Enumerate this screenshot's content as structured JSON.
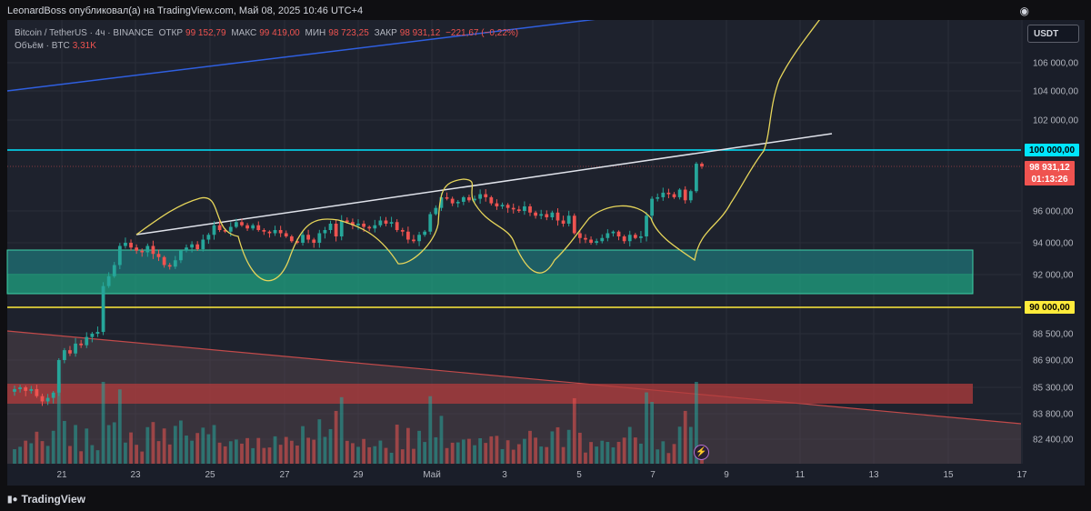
{
  "header": {
    "published": "LeonardBoss опубликовал(а) на TradingView.com, Май 08, 2025 10:46 UTC+4",
    "snapshot_icon": "camera-icon"
  },
  "legend": {
    "symbol": "Bitcoin / TetherUS · 4ч · BINANCE",
    "open_label": "ОТКР",
    "open_value": "99 152,79",
    "high_label": "МАКС",
    "high_value": "99 419,00",
    "low_label": "МИН",
    "low_value": "98 723,25",
    "close_label": "ЗАКР",
    "close_value": "98 931,12",
    "change": "−221,67 (−0,22%)",
    "volume_label": "Объём · BTC",
    "volume_value": "3,31K"
  },
  "currency": "USDT",
  "price_tags": {
    "level_100k": "100 000,00",
    "last_price": "98 931,12",
    "countdown": "01:13:26",
    "level_90k": "90 000,00"
  },
  "footer": {
    "brand": "TradingView"
  },
  "colors": {
    "up": "#26a69a",
    "down": "#ef5350",
    "cyan_level": "#00e5ff",
    "yellow_level": "#ffeb3b",
    "blue_trend": "#2962ff",
    "sketch": "#e6d55a",
    "demand_zone": "#1b9e85",
    "supply_zone": "#d84a4a"
  },
  "chart_data": {
    "type": "candlestick",
    "symbol": "BTCUSDT",
    "timeframe": "4h",
    "y_ticks": [
      "106 000,00",
      "104 000,00",
      "102 000,00",
      "96 000,00",
      "94 000,00",
      "92 000,00",
      "88 500,00",
      "86 900,00",
      "85 300,00",
      "83 800,00",
      "82 400,00"
    ],
    "x_ticks": [
      "21",
      "23",
      "25",
      "27",
      "29",
      "Май",
      "3",
      "5",
      "7",
      "9",
      "11",
      "13",
      "15",
      "17"
    ],
    "closes": [
      85200,
      85300,
      85100,
      85200,
      84800,
      84500,
      84700,
      85000,
      86900,
      87500,
      87300,
      87900,
      87800,
      88300,
      88500,
      88600,
      91300,
      91900,
      92600,
      93800,
      94000,
      93700,
      93500,
      93400,
      93800,
      93300,
      93100,
      92600,
      92500,
      92900,
      93500,
      93700,
      93900,
      93600,
      94200,
      94500,
      95100,
      94800,
      94700,
      95000,
      95300,
      95100,
      94900,
      95100,
      94800,
      94700,
      94600,
      94800,
      94600,
      94400,
      94100,
      94000,
      94500,
      94200,
      94000,
      94600,
      94800,
      95200,
      94400,
      95400,
      95300,
      95100,
      95200,
      95000,
      94900,
      95100,
      95400,
      95200,
      95300,
      94800,
      94700,
      94200,
      94100,
      94500,
      94700,
      95800,
      96200,
      96900,
      96800,
      96500,
      96600,
      96900,
      96700,
      96800,
      97100,
      96900,
      96500,
      96300,
      96400,
      96200,
      96100,
      96000,
      96300,
      95900,
      95700,
      95800,
      95600,
      95900,
      95400,
      95200,
      95700,
      94600,
      94300,
      94200,
      94000,
      94100,
      94300,
      94600,
      94700,
      94400,
      94100,
      94500,
      94300,
      94400,
      95700,
      96800,
      96900,
      97200,
      97100,
      96900,
      97400,
      96700,
      97300,
      99100,
      98931
    ],
    "volume_note": "Объём · BTC",
    "annotations": {
      "horizontal_levels": [
        100000,
        90000
      ],
      "demand_zone": [
        91000,
        93500
      ],
      "supply_zone": [
        84700,
        86000
      ]
    }
  }
}
